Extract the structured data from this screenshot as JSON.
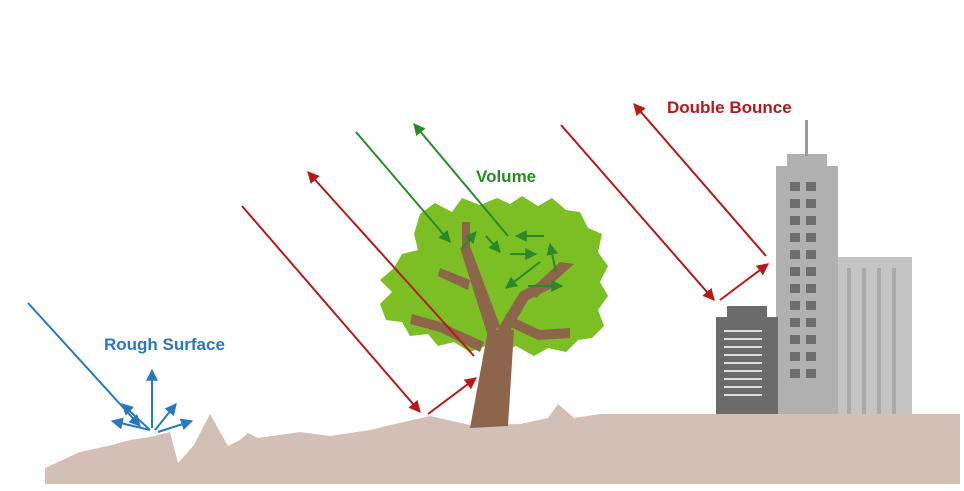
{
  "labels": {
    "rough_surface": "Rough Surface",
    "volume": "Volume",
    "double_bounce": "Double Bounce"
  },
  "colors": {
    "rough": "#2878bd",
    "volume": "#2a8a2a",
    "double": "#b51a1a",
    "ground": "#d3bfb5",
    "foliage": "#7cbf25",
    "trunk": "#8d654b",
    "building_light": "#b9b9b9",
    "building_mid": "#a9a9a9",
    "building_dark": "#6b6b6b",
    "window": "#6e6e6e"
  },
  "icons": [
    "tree-icon",
    "building-icon",
    "ground-icon"
  ]
}
